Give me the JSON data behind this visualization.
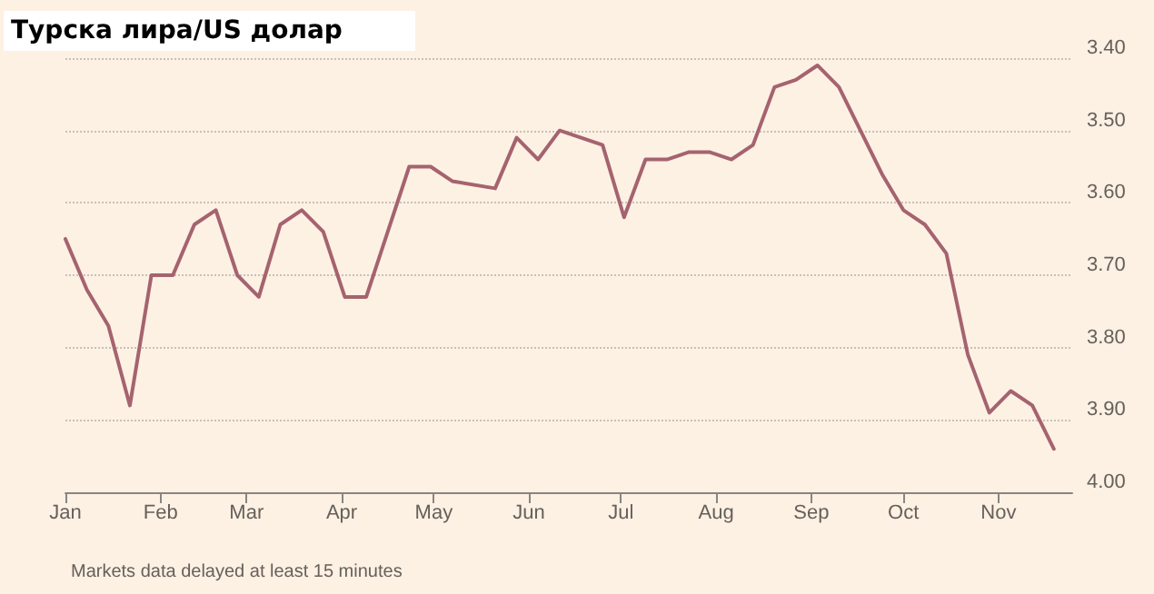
{
  "chart_data": {
    "type": "line",
    "title": "Турска лира/US долар",
    "annotations": [
      "Markets data delayed at least 15 minutes"
    ],
    "x": [
      "--01-01",
      "--01-08",
      "--01-15",
      "--01-22",
      "--01-29",
      "--02-05",
      "--02-12",
      "--02-19",
      "--02-26",
      "--03-05",
      "--03-12",
      "--03-19",
      "--03-26",
      "--04-02",
      "--04-09",
      "--04-23",
      "--04-30",
      "--05-07",
      "--05-21",
      "--05-28",
      "--06-04",
      "--06-11",
      "--06-18",
      "--06-25",
      "--07-02",
      "--07-09",
      "--07-16",
      "--07-23",
      "--07-30",
      "--08-06",
      "--08-13",
      "--08-20",
      "--08-27",
      "--09-03",
      "--09-10",
      "--09-17",
      "--09-24",
      "--10-01",
      "--10-08",
      "--10-15",
      "--10-22",
      "--10-29",
      "--11-05",
      "--11-12",
      "--11-19"
    ],
    "series": [
      {
        "color": "#a5636f",
        "values": [
          3.65,
          3.72,
          3.77,
          3.88,
          3.7,
          3.7,
          3.63,
          3.61,
          3.7,
          3.73,
          3.63,
          3.61,
          3.64,
          3.73,
          3.73,
          3.55,
          3.55,
          3.57,
          3.58,
          3.51,
          3.54,
          3.5,
          3.51,
          3.52,
          3.62,
          3.54,
          3.54,
          3.53,
          3.53,
          3.54,
          3.52,
          3.44,
          3.43,
          3.41,
          3.44,
          3.5,
          3.56,
          3.61,
          3.63,
          3.67,
          3.81,
          3.89,
          3.86,
          3.88,
          3.94
        ]
      }
    ],
    "xlim": [
      "--01-01",
      "--11-25"
    ],
    "xticks": [
      {
        "value": "--01-01",
        "label": "Jan"
      },
      {
        "value": "--02-01",
        "label": "Feb"
      },
      {
        "value": "--03-01",
        "label": "Mar"
      },
      {
        "value": "--04-01",
        "label": "Apr"
      },
      {
        "value": "--05-01",
        "label": "May"
      },
      {
        "value": "--06-01",
        "label": "Jun"
      },
      {
        "value": "--07-01",
        "label": "Jul"
      },
      {
        "value": "--08-01",
        "label": "Aug"
      },
      {
        "value": "--09-01",
        "label": "Sep"
      },
      {
        "value": "--10-01",
        "label": "Oct"
      },
      {
        "value": "--11-01",
        "label": "Nov"
      }
    ],
    "ylim": [
      4.0,
      3.4
    ],
    "yticks": [
      {
        "value": 3.4,
        "label": "3.40"
      },
      {
        "value": 3.5,
        "label": "3.50"
      },
      {
        "value": 3.6,
        "label": "3.60"
      },
      {
        "value": 3.7,
        "label": "3.70"
      },
      {
        "value": 3.8,
        "label": "3.80"
      },
      {
        "value": 3.9,
        "label": "3.90"
      },
      {
        "value": 4.0,
        "label": "4.00"
      }
    ],
    "grid": "y",
    "marker": "none",
    "line_style": "solid"
  }
}
